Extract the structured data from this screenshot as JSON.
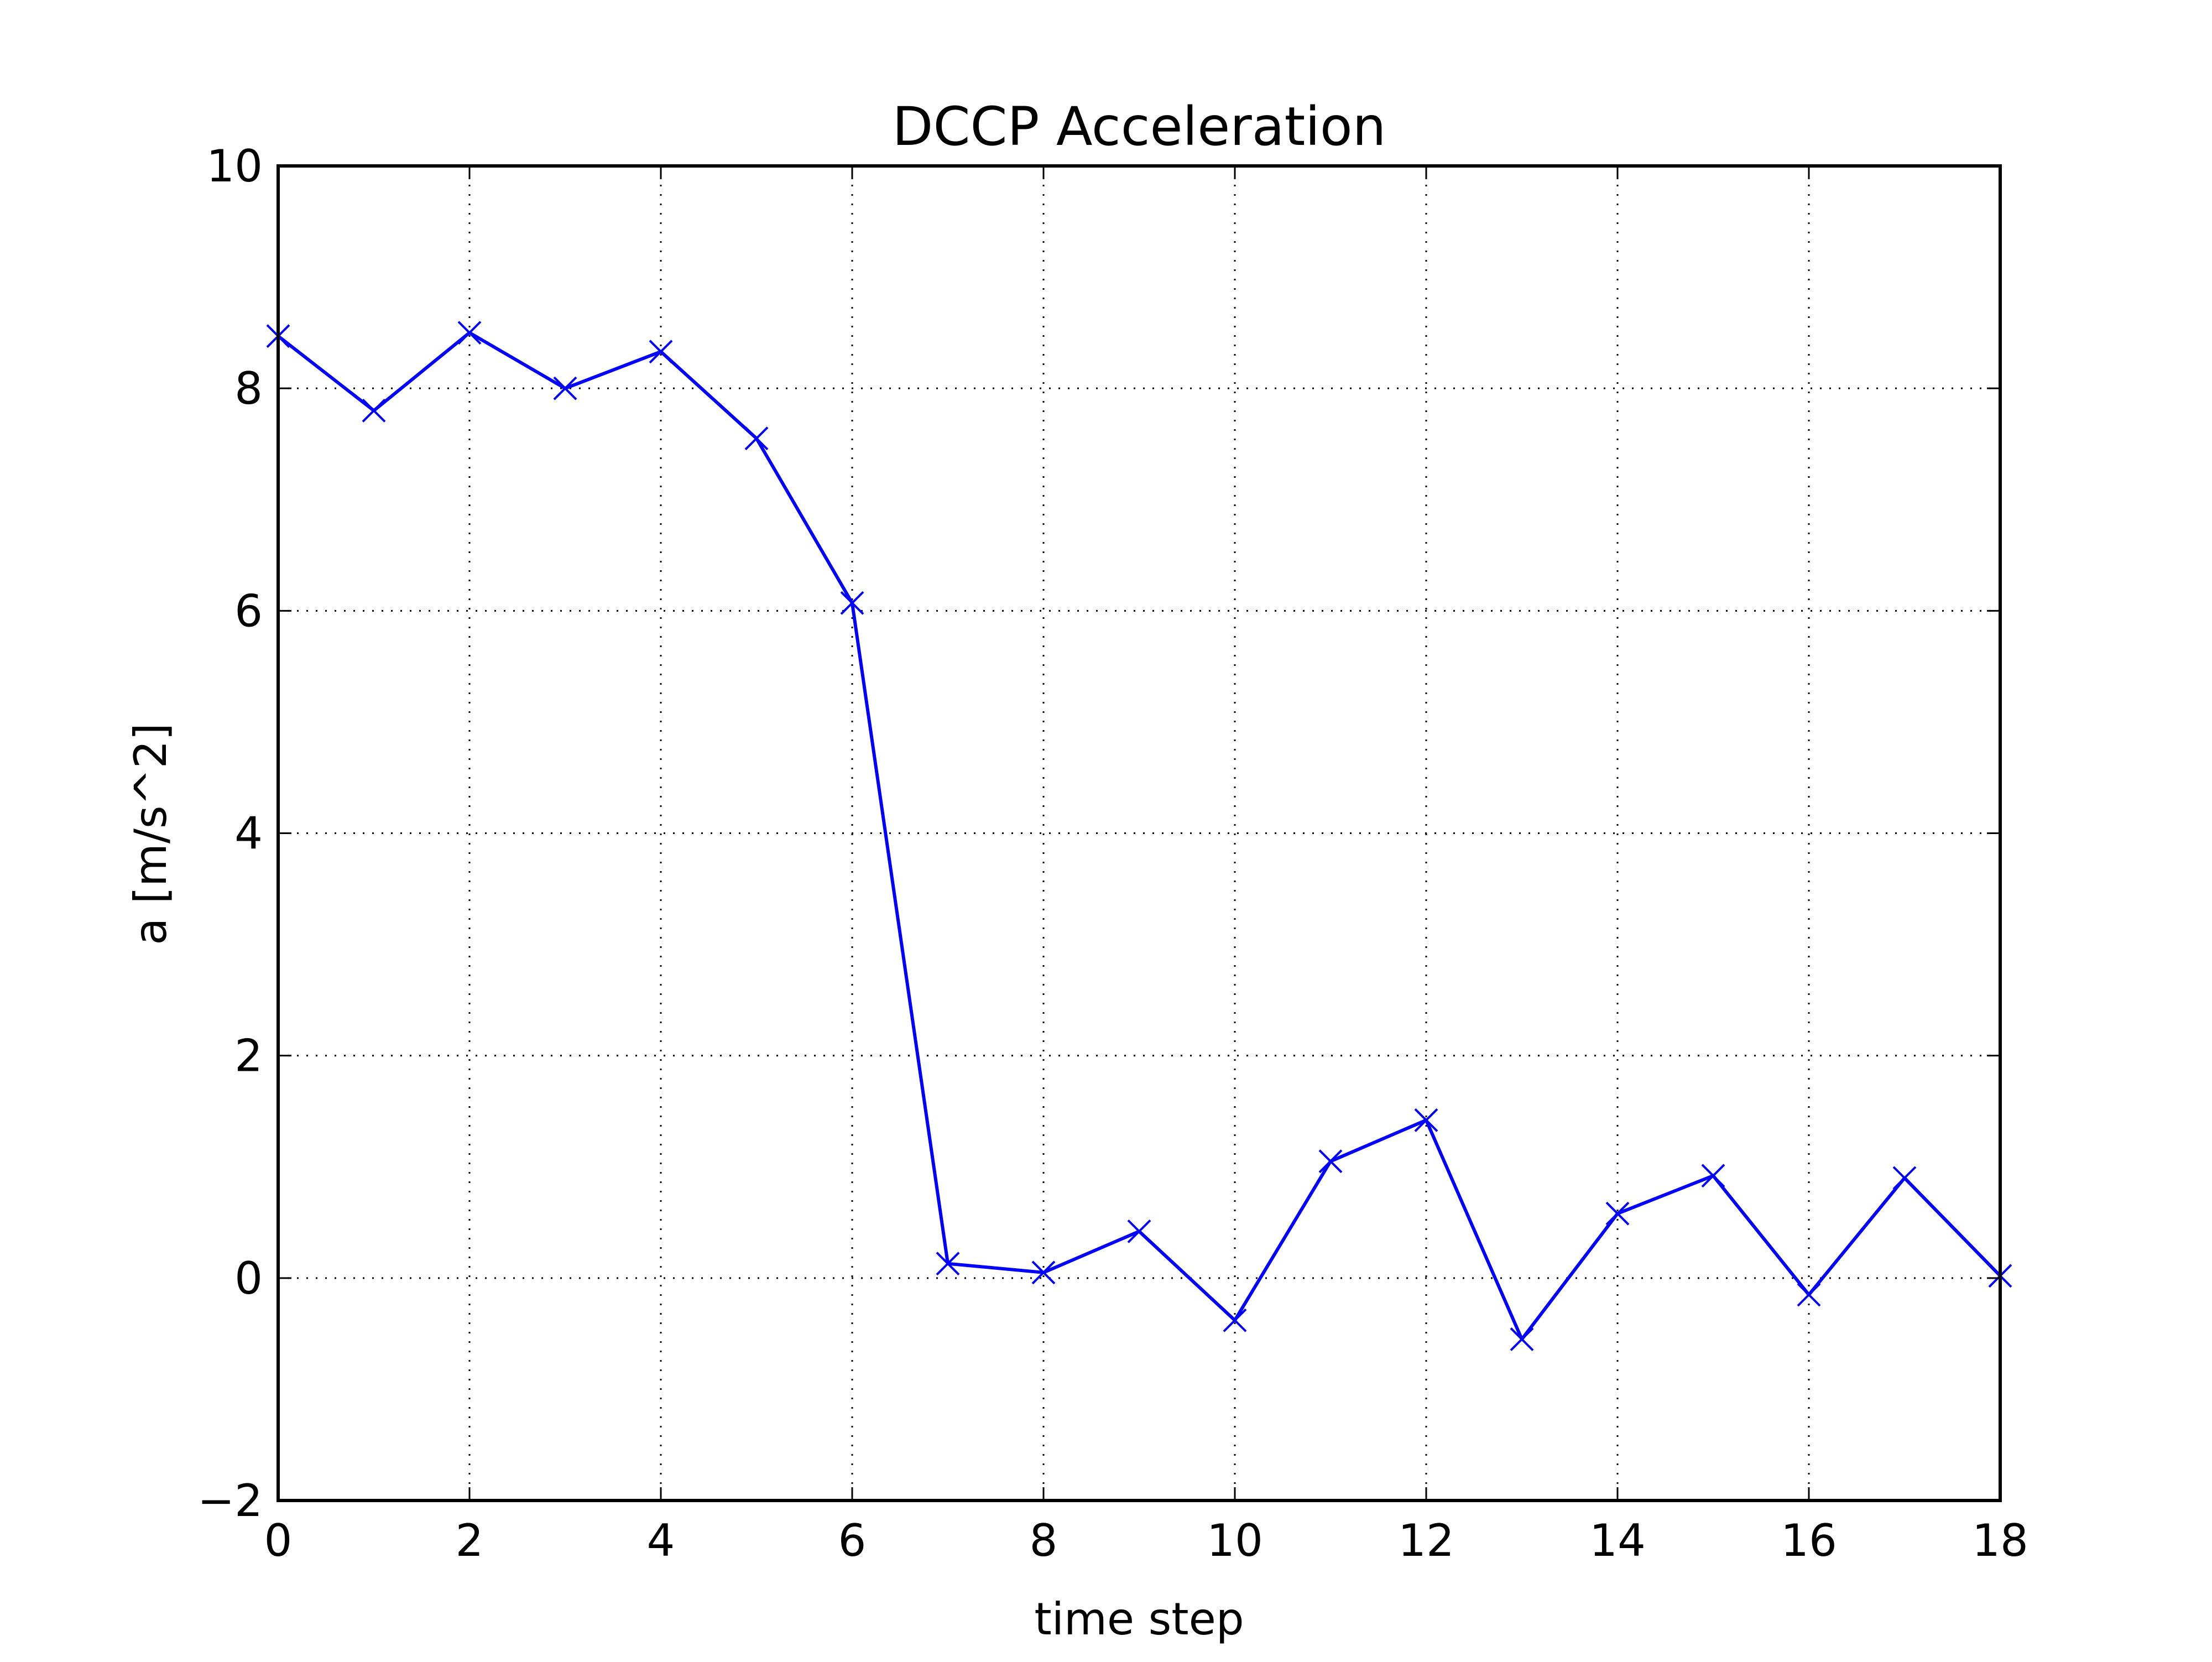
{
  "chart_data": {
    "type": "line",
    "title": "DCCP Acceleration",
    "xlabel": "time step",
    "ylabel": "a [m/s^2]",
    "xlim": [
      0,
      18
    ],
    "ylim": [
      -2,
      10
    ],
    "grid": true,
    "x_ticks": [
      "0",
      "2",
      "4",
      "6",
      "8",
      "10",
      "12",
      "14",
      "16",
      "18"
    ],
    "y_ticks": [
      "−2",
      "0",
      "2",
      "4",
      "6",
      "8",
      "10"
    ],
    "x": [
      0,
      1,
      2,
      3,
      4,
      5,
      6,
      7,
      8,
      9,
      10,
      11,
      12,
      13,
      14,
      15,
      16,
      17,
      18
    ],
    "series": [
      {
        "values": [
          8.47,
          7.8,
          8.5,
          8.0,
          8.33,
          7.55,
          6.07,
          0.13,
          0.05,
          0.42,
          -0.38,
          1.05,
          1.42,
          -0.55,
          0.58,
          0.92,
          -0.15,
          0.9,
          0.02
        ],
        "color": "#0000ff",
        "marker": "x"
      }
    ]
  }
}
